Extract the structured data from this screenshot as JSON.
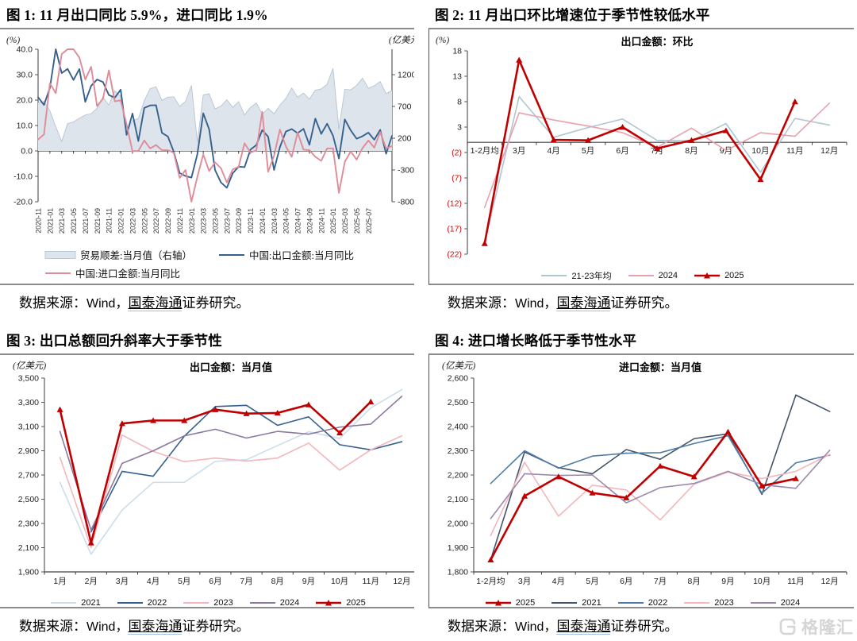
{
  "watermark": {
    "logo": "gelonghui-logo",
    "text": "格隆汇"
  },
  "panels": [
    {
      "id": "fig1",
      "title": "图 1:  11 月出口同比 5.9%，进口同比 1.9%",
      "source": {
        "label": "数据来源：",
        "vendor": "Wind，",
        "link": "国泰海通",
        "rest": "证券研究。"
      }
    },
    {
      "id": "fig2",
      "title": "图 2:  11 月出口环比增速位于季节性较低水平",
      "source": {
        "label": "数据来源：",
        "vendor": "Wind，",
        "link": "国泰海通",
        "rest": "证券研究。"
      }
    },
    {
      "id": "fig3",
      "title": "图 3:  出口总额回升斜率大于季节性",
      "source": {
        "label": "数据来源：",
        "vendor": "Wind，",
        "link": "国泰海通",
        "rest": "证券研究。"
      }
    },
    {
      "id": "fig4",
      "title": "图 4:  进口增长略低于季节性水平",
      "source": {
        "label": "数据来源：",
        "vendor": "Wind，",
        "link": "国泰海通",
        "rest": "证券研究。"
      }
    }
  ],
  "chart_data": [
    {
      "id": "fig1",
      "type": "area+line",
      "unit_left": "(%)",
      "unit_right": "(亿美元)",
      "x_mode": "index",
      "points": 61,
      "x_labels": [
        "2020-11",
        "2021-01",
        "2021-03",
        "2021-05",
        "2021-07",
        "2021-09",
        "2021-11",
        "2022-01",
        "2022-03",
        "2022-05",
        "2022-07",
        "2022-09",
        "2022-11",
        "2023-01",
        "2023-03",
        "2023-05",
        "2023-07",
        "2023-09",
        "2023-11",
        "2024-01",
        "2024-03",
        "2024-05",
        "2024-07",
        "2024-09",
        "2024-11",
        "2025-01",
        "2025-03",
        "2025-05",
        "2025-07"
      ],
      "x_label_every": 2,
      "y_left": {
        "min": -20,
        "max": 40,
        "tick_labels": [
          "40.0",
          "30.0",
          "20.0",
          "10.0",
          "0.0",
          "-10.0",
          "-20.0"
        ]
      },
      "y_right": {
        "min": -800,
        "max": 1600,
        "tick_values": [
          1200,
          700,
          200,
          -300,
          -800
        ],
        "tick_labels": [
          "1200",
          "700",
          "200",
          "-300",
          "-800"
        ]
      },
      "series": [
        {
          "name": "贸易顺差:当月值（右轴）",
          "type": "area",
          "axis": "right",
          "color": "#bac8d4",
          "fill": "#dee4eb",
          "values": [
            754,
            780,
            630,
            380,
            150,
            430,
            455,
            515,
            565,
            585,
            670,
            845,
            720,
            945,
            860,
            305,
            475,
            510,
            790,
            980,
            1010,
            795,
            845,
            850,
            700,
            780,
            1030,
            140,
            880,
            900,
            660,
            705,
            805,
            685,
            775,
            565,
            685,
            755,
            580,
            670,
            585,
            720,
            825,
            990,
            845,
            910,
            815,
            955,
            975,
            1048,
            1300,
            340,
            970,
            960,
            1030,
            1145,
            985,
            1025,
            1090,
            900,
            950
          ]
        },
        {
          "name": "中国:出口金额:当月同比",
          "type": "line",
          "axis": "left",
          "color": "#36618e",
          "values": [
            21.1,
            18.1,
            24.8,
            60.6,
            30.6,
            32.3,
            27.9,
            32.2,
            19.3,
            25.6,
            28.1,
            27.1,
            22.0,
            20.9,
            24.1,
            6.3,
            14.7,
            3.9,
            16.9,
            17.9,
            18.0,
            7.1,
            5.7,
            -0.3,
            -8.7,
            -9.9,
            -10.5,
            -1.3,
            14.8,
            8.5,
            -7.5,
            -12.4,
            -14.5,
            -8.8,
            -6.2,
            -6.4,
            0.5,
            2.3,
            8.2,
            5.6,
            -7.5,
            1.5,
            7.6,
            8.6,
            7.0,
            8.7,
            2.4,
            12.7,
            6.7,
            10.7,
            6.0,
            -3.0,
            12.4,
            8.1,
            4.8,
            5.8,
            7.2,
            4.4,
            8.3,
            -1.1,
            5.9
          ]
        },
        {
          "name": "中国:进口金额:当月同比",
          "type": "line",
          "axis": "left",
          "color": "#e08b98",
          "values": [
            4.5,
            6.5,
            26.6,
            22.7,
            38.1,
            43.1,
            51.1,
            36.7,
            28.1,
            33.1,
            17.6,
            20.6,
            31.7,
            19.5,
            19.9,
            10.4,
            -0.1,
            0.0,
            4.1,
            1.0,
            2.3,
            0.3,
            0.3,
            -0.7,
            -10.6,
            -7.5,
            -21.4,
            -10.2,
            -1.4,
            -7.9,
            -4.5,
            -6.8,
            -12.4,
            -7.3,
            -6.2,
            3.0,
            -0.6,
            0.2,
            15.4,
            -8.2,
            -1.9,
            8.4,
            1.8,
            -2.3,
            7.2,
            0.5,
            0.3,
            -2.3,
            -3.9,
            1.0,
            1.0,
            -16.5,
            -4.3,
            -0.2,
            -3.4,
            1.1,
            4.1,
            1.3,
            7.4,
            1.0,
            1.9
          ]
        }
      ]
    },
    {
      "id": "fig2",
      "type": "line",
      "unit_left": "(%)",
      "inner_title": "出口金额：环比",
      "x_mode": "band",
      "x_labels": [
        "1-2月均",
        "3月",
        "4月",
        "5月",
        "6月",
        "7月",
        "8月",
        "9月",
        "10月",
        "11月",
        "12月"
      ],
      "x_axis_at": "zero",
      "y_left": {
        "min": -22,
        "max": 18,
        "tick_labels": [
          "18",
          "13",
          "8",
          "3",
          "(2)",
          "(7)",
          "(12)",
          "(17)",
          "(22)"
        ]
      },
      "series": [
        {
          "name": "21-23年均",
          "type": "line",
          "color": "#afc7d1",
          "values": [
            -19.8,
            9.0,
            1.0,
            2.9,
            4.6,
            0.4,
            0.3,
            3.7,
            -5.9,
            4.7,
            3.4
          ]
        },
        {
          "name": "2024",
          "type": "line",
          "color": "#e9a1ac",
          "values": [
            -12.8,
            5.8,
            4.4,
            3.2,
            1.9,
            -1.0,
            2.8,
            -1.6,
            1.9,
            1.2,
            7.7
          ]
        },
        {
          "name": "2025",
          "type": "line",
          "color": "#c00000",
          "marker": "triangle",
          "values": [
            -19.9,
            16.2,
            0.5,
            0.4,
            3.0,
            -1.2,
            0.4,
            2.3,
            -7.3,
            8.0,
            null
          ]
        }
      ]
    },
    {
      "id": "fig3",
      "type": "line",
      "unit_left": "(亿美元)",
      "inner_title": "出口金额：当月值",
      "x_mode": "band",
      "x_labels": [
        "1月",
        "2月",
        "3月",
        "4月",
        "5月",
        "6月",
        "7月",
        "8月",
        "9月",
        "10月",
        "11月",
        "12月"
      ],
      "y_left": {
        "min": 1900,
        "max": 3500,
        "tick_labels": [
          "3,500",
          "3,300",
          "3,100",
          "2,900",
          "2,700",
          "2,500",
          "2,300",
          "2,100",
          "1,900"
        ]
      },
      "series": [
        {
          "name": "2021",
          "type": "line",
          "color": "#cdddea",
          "values": [
            2639,
            2045,
            2411,
            2639,
            2640,
            2813,
            2826,
            2943,
            3057,
            3002,
            3254,
            3405
          ]
        },
        {
          "name": "2022",
          "type": "line",
          "color": "#36618e",
          "values": [
            null,
            2230,
            2730,
            2690,
            3020,
            3265,
            3275,
            3110,
            3180,
            2950,
            2908,
            2975
          ]
        },
        {
          "name": "2023",
          "type": "line",
          "color": "#f3b6bd",
          "values": [
            2845,
            2100,
            3030,
            2895,
            2810,
            2840,
            2815,
            2840,
            2963,
            2740,
            2908,
            3023
          ]
        },
        {
          "name": "2024",
          "type": "line",
          "color": "#8b7aa0",
          "values": [
            3060,
            2245,
            2796,
            2900,
            3023,
            3078,
            3005,
            3060,
            3037,
            3095,
            3120,
            3350
          ]
        },
        {
          "name": "2025",
          "type": "line",
          "color": "#c00000",
          "marker": "triangle",
          "values": [
            3240,
            2140,
            3125,
            3150,
            3150,
            3240,
            3207,
            3212,
            3280,
            3048,
            3305,
            null
          ]
        }
      ]
    },
    {
      "id": "fig4",
      "type": "line",
      "unit_left": "(亿美元)",
      "inner_title": "进口金额：当月值",
      "x_mode": "band",
      "x_labels": [
        "1-2月均",
        "3月",
        "4月",
        "5月",
        "6月",
        "7月",
        "8月",
        "9月",
        "10月",
        "11月",
        "12月"
      ],
      "y_left": {
        "min": 1800,
        "max": 2600,
        "tick_labels": [
          "2,600",
          "2,500",
          "2,400",
          "2,300",
          "2,200",
          "2,100",
          "2,000",
          "1,900",
          "1,800"
        ]
      },
      "series": [
        {
          "name": "2025",
          "type": "line",
          "color": "#c00000",
          "marker": "triangle",
          "values": [
            1850,
            2113,
            2193,
            2126,
            2106,
            2237,
            2193,
            2378,
            2155,
            2185,
            null
          ]
        },
        {
          "name": "2021",
          "type": "line",
          "color": "#44546a",
          "values": [
            1850,
            2295,
            2230,
            2205,
            2305,
            2265,
            2350,
            2370,
            2120,
            2530,
            2462
          ]
        },
        {
          "name": "2022",
          "type": "line",
          "color": "#4f7da8",
          "values": [
            2165,
            2300,
            2228,
            2278,
            2290,
            2292,
            2330,
            2362,
            2125,
            2250,
            2282
          ]
        },
        {
          "name": "2023",
          "type": "line",
          "color": "#f3b6bd",
          "values": [
            1950,
            2252,
            2030,
            2158,
            2138,
            2015,
            2162,
            2212,
            2185,
            2215,
            2285
          ]
        },
        {
          "name": "2024",
          "type": "line",
          "color": "#9c88ad",
          "values": [
            2020,
            2205,
            2198,
            2200,
            2085,
            2148,
            2165,
            2215,
            2160,
            2145,
            2302
          ]
        }
      ]
    }
  ]
}
